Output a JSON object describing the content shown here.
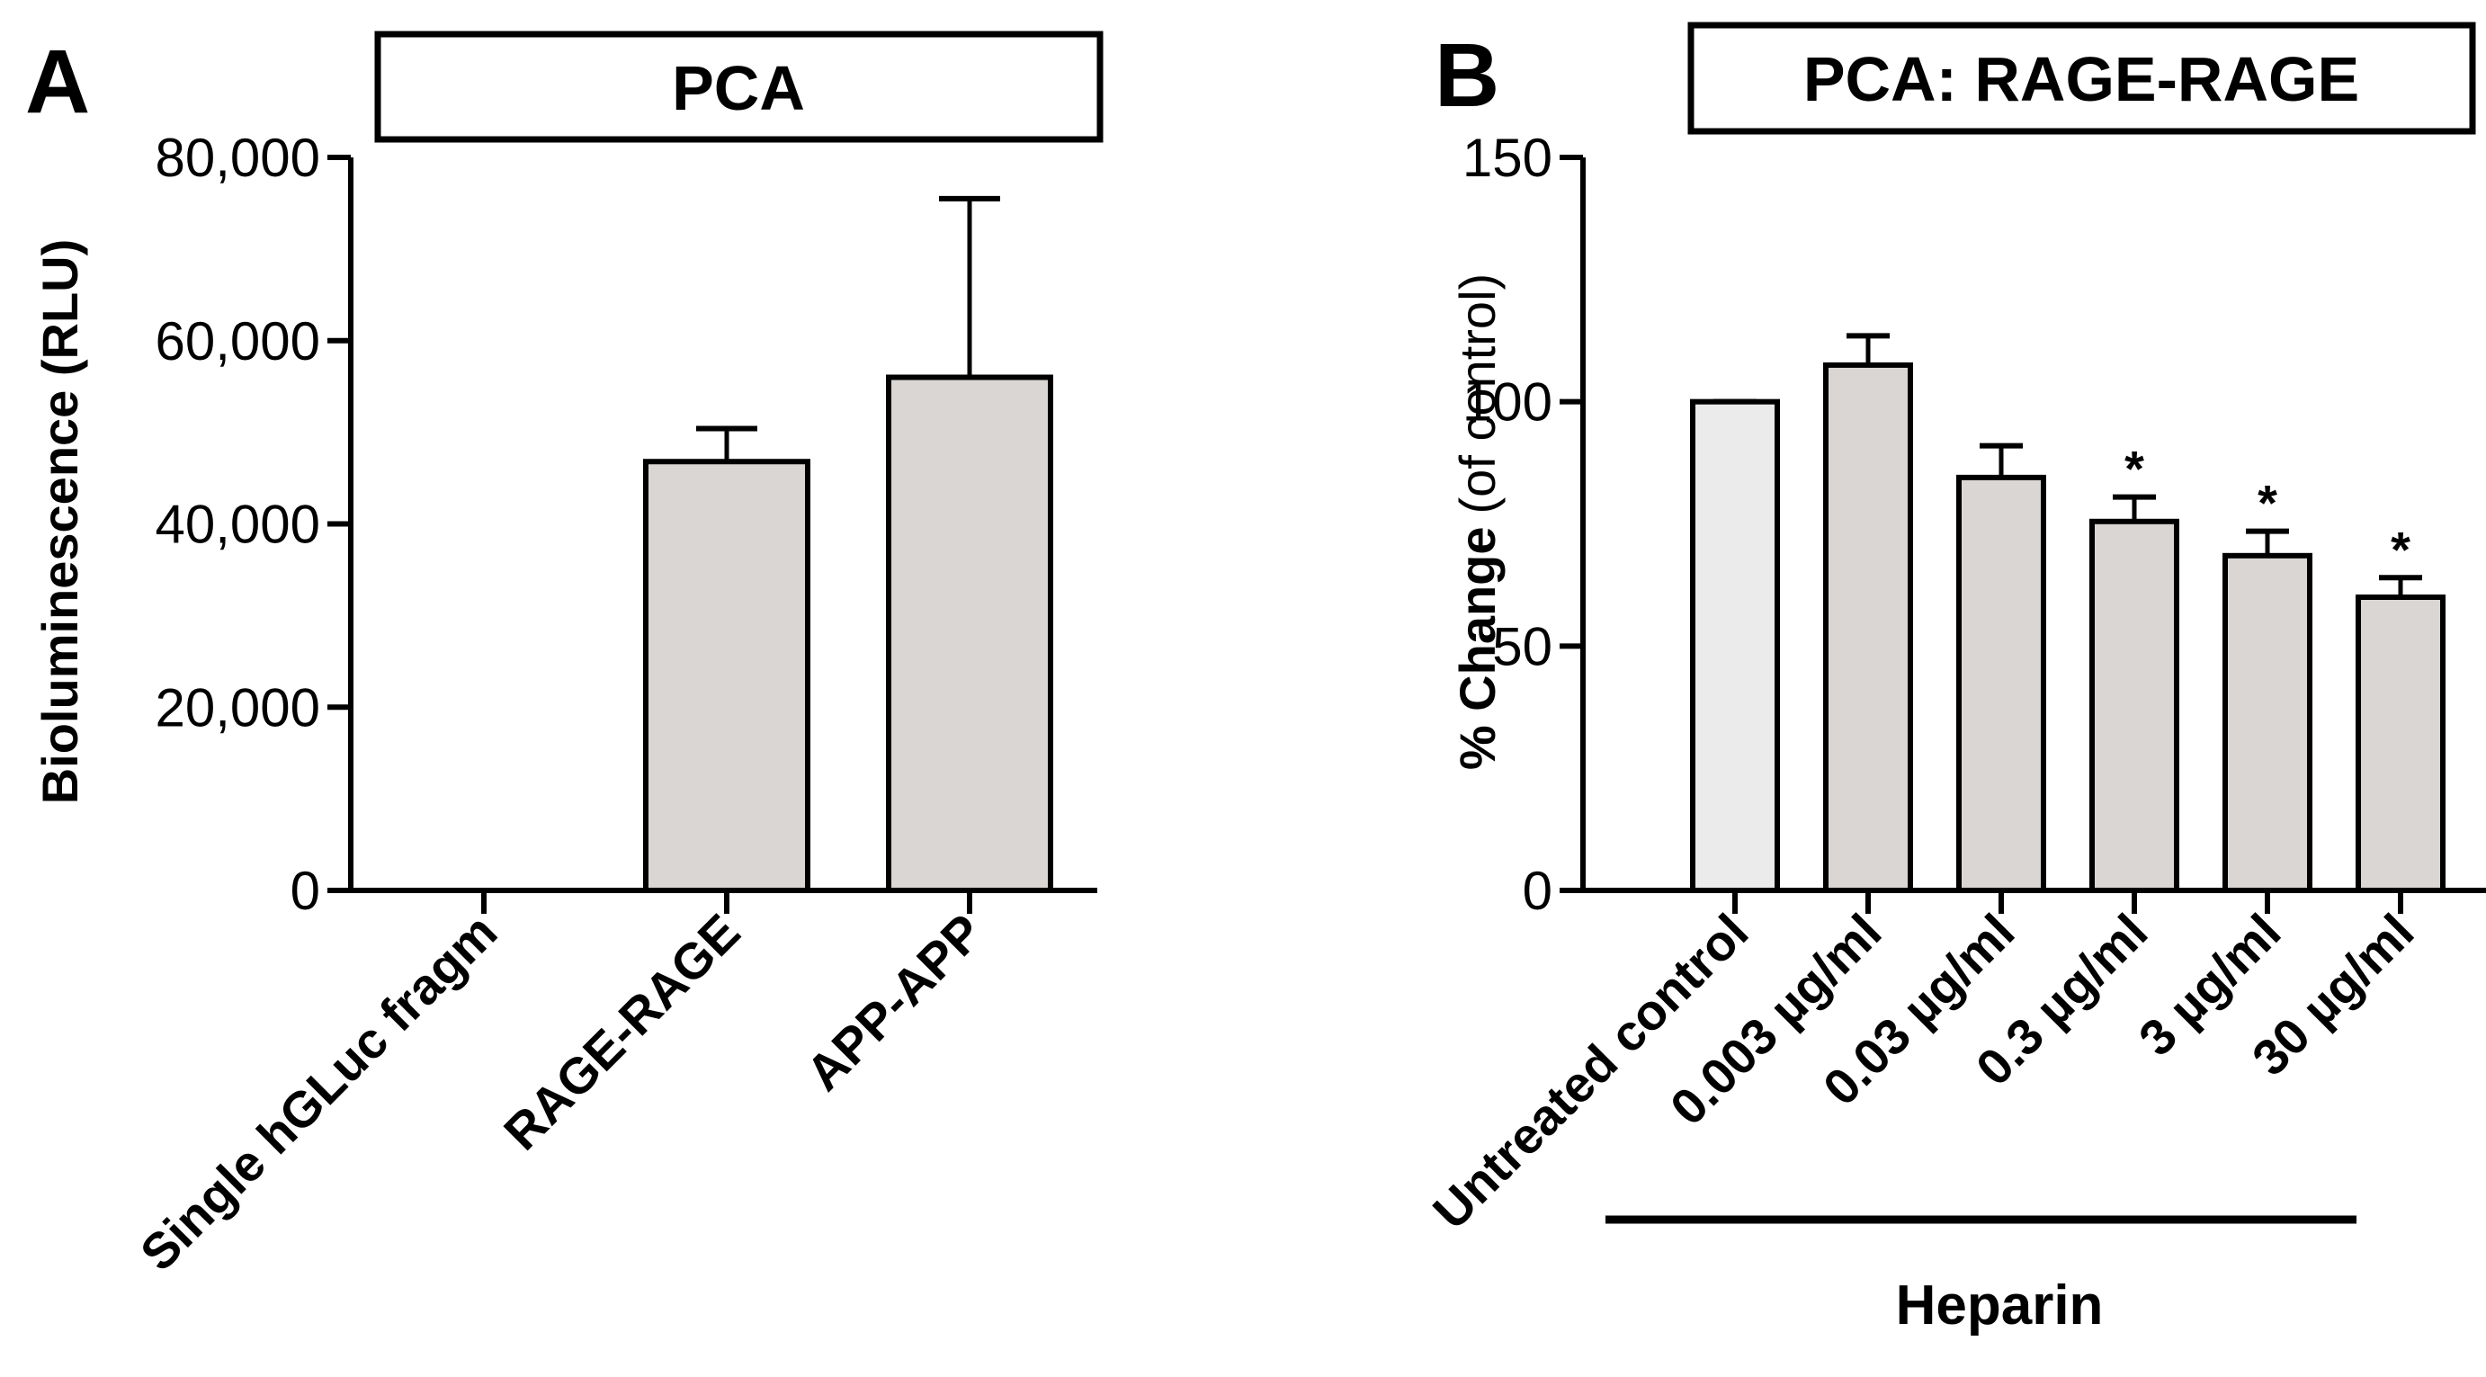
{
  "chart_data": [
    {
      "type": "bar",
      "panel_label": "A",
      "title": "PCA",
      "ylabel": "Bioluminescence (RLU)",
      "xlabel": "",
      "ylim": [
        0,
        80000
      ],
      "yticks": [
        0,
        20000,
        40000,
        60000,
        80000
      ],
      "ytick_labels": [
        "0",
        "20,000",
        "40,000",
        "60,000",
        "80,000"
      ],
      "categories": [
        "Single hGLuc fragm",
        "RAGE-RAGE",
        "APP-APP"
      ],
      "values": [
        0,
        46800,
        56000
      ],
      "errors": [
        0,
        3600,
        19500
      ],
      "bar_colors": [
        "#d9d6d3",
        "#d9d6d3",
        "#d9d6d3"
      ],
      "annotations": [
        "",
        "",
        ""
      ],
      "grid": false
    },
    {
      "type": "bar",
      "panel_label": "B",
      "title": "PCA: RAGE-RAGE",
      "ylabel_bold": "% Change",
      "ylabel_normal": "(of control)",
      "xlabel": "",
      "ylim": [
        0,
        150
      ],
      "yticks": [
        0,
        50,
        100,
        150
      ],
      "ytick_labels": [
        "0",
        "50",
        "100",
        "150"
      ],
      "categories": [
        "Untreated control",
        "0.003 µg/ml",
        "0.03 µg/ml",
        "0.3 µg/ml",
        "3 µg/ml",
        "30 µg/ml"
      ],
      "values": [
        100,
        107.5,
        84.5,
        75.5,
        68.5,
        60
      ],
      "errors": [
        0,
        6,
        6.5,
        5,
        5,
        4
      ],
      "bar_colors": [
        "#ebebeb",
        "#d9d6d3",
        "#d9d6d3",
        "#d9d6d3",
        "#d9d6d3",
        "#d9d6d3"
      ],
      "annotations": [
        "",
        "",
        "",
        "*",
        "*",
        "*"
      ],
      "group_label": "Heparin",
      "grid": false
    }
  ]
}
